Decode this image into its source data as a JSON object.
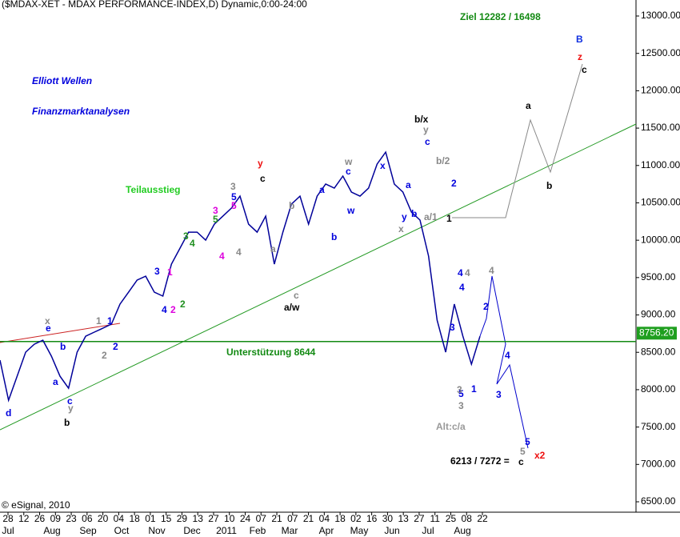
{
  "chart_data": {
    "type": "line",
    "title": "($MDAX-XET - MDAX PERFORMANCE-INDEX,D) Dynamic,0:00-24:00",
    "color": "#000099",
    "values": [
      8395,
      7859,
      8180,
      8502,
      8609,
      8662,
      8448,
      8180,
      8020,
      8502,
      8716,
      8770,
      8823,
      8877,
      9145,
      9305,
      9466,
      9519,
      9305,
      9252,
      9680,
      9894,
      10108,
      10108,
      10001,
      10215,
      10322,
      10430,
      10590,
      10215,
      10108,
      10322,
      9680,
      10108,
      10483,
      10590,
      10215,
      10590,
      10751,
      10697,
      10858,
      10644,
      10590,
      10697,
      11019,
      11179,
      10751,
      10644,
      10376,
      10269,
      9787,
      8930,
      8502,
      9145,
      8716,
      8341,
      8716
    ],
    "ylim": [
      6500,
      13000
    ],
    "yticks": [
      {
        "value": 6500,
        "label": "6500.00"
      },
      {
        "value": 7000,
        "label": "7000.00"
      },
      {
        "value": 7500,
        "label": "7500.00"
      },
      {
        "value": 8000,
        "label": "8000.00"
      },
      {
        "value": 8500,
        "label": "8500.00"
      },
      {
        "value": 9000,
        "label": "9000.00"
      },
      {
        "value": 9500,
        "label": "9500.00"
      },
      {
        "value": 10000,
        "label": "10000.00"
      },
      {
        "value": 10500,
        "label": "10500.00"
      },
      {
        "value": 11000,
        "label": "11000.00"
      },
      {
        "value": 11500,
        "label": "11500.00"
      },
      {
        "value": 12000,
        "label": "12000.00"
      },
      {
        "value": 12500,
        "label": "12500.00"
      },
      {
        "value": 13000,
        "label": "13000.00"
      }
    ],
    "day_labels": [
      "28",
      "12",
      "26",
      "09",
      "23",
      "06",
      "20",
      "04",
      "18",
      "01",
      "15",
      "29",
      "13",
      "27",
      "10",
      "24",
      "07",
      "21",
      "07",
      "21",
      "04",
      "18",
      "02",
      "16",
      "30",
      "13",
      "27",
      "11",
      "25",
      "08",
      "22"
    ],
    "month_labels": [
      "Jul",
      "Aug",
      "Sep",
      "Oct",
      "Nov",
      "Dec",
      "2011",
      "Feb",
      "Mar",
      "Apr",
      "May",
      "Jun",
      "Jul",
      "Aug"
    ],
    "support": {
      "value": 8644,
      "label": "Unterstützung 8644"
    },
    "last_price": {
      "value": 8756.2,
      "label": "8756.20"
    },
    "copyright": "© eSignal, 2010",
    "annotations": [
      {
        "text": "Elliott Wellen",
        "color": "#0000dd"
      },
      {
        "text": "Finanzmarktanalysen",
        "color": "#0000dd"
      },
      {
        "text": "Ziel 12282 / 16498",
        "color": "#138a13"
      },
      {
        "text": "B",
        "color": "#1030e0"
      },
      {
        "text": "z",
        "color": "#ee1111"
      },
      {
        "text": "c",
        "color": "#000000"
      },
      {
        "text": "a",
        "color": "#000000"
      },
      {
        "text": "b",
        "color": "#000000"
      },
      {
        "text": "b/x",
        "color": "#000000"
      },
      {
        "text": "y",
        "color": "#888888"
      },
      {
        "text": "c",
        "color": "#0000dd"
      },
      {
        "text": "y",
        "color": "#ee1111"
      },
      {
        "text": "c",
        "color": "#000000"
      },
      {
        "text": "Teilausstieg",
        "color": "#22cc22"
      },
      {
        "text": "a/w",
        "color": "#000000"
      },
      {
        "text": "c",
        "color": "#888888"
      },
      {
        "text": "Alt:c/a",
        "color": "#999999"
      },
      {
        "text": "6213 / 7272 =",
        "color": "#000000"
      },
      {
        "text": "c",
        "color": "#000000"
      },
      {
        "text": "x2",
        "color": "#ee1111"
      },
      {
        "text": "b",
        "color": "#000000"
      },
      {
        "text": "d",
        "color": "#0000dd"
      },
      {
        "text": "a/1",
        "color": "#888888"
      },
      {
        "text": "x",
        "color": "#888888"
      },
      {
        "text": "b/2",
        "color": "#888888"
      },
      {
        "text": "4",
        "color": "#888888"
      },
      {
        "text": "4",
        "color": "#888888"
      },
      {
        "text": "3",
        "color": "#888888"
      },
      {
        "text": "5",
        "color": "#0000dd"
      },
      {
        "text": "1",
        "color": "#0000dd"
      },
      {
        "text": "3",
        "color": "#0000dd"
      },
      {
        "text": "4",
        "color": "#0000dd"
      },
      {
        "text": "2",
        "color": "#0000dd"
      },
      {
        "text": "4",
        "color": "#0000dd"
      },
      {
        "text": "3",
        "color": "#0000dd"
      },
      {
        "text": "5",
        "color": "#0000dd"
      },
      {
        "text": "5",
        "color": "#888888"
      },
      {
        "text": "w",
        "color": "#888888"
      },
      {
        "text": "c",
        "color": "#0000dd"
      },
      {
        "text": "w",
        "color": "#0000dd"
      },
      {
        "text": "x",
        "color": "#0000dd"
      },
      {
        "text": "a",
        "color": "#0000dd"
      },
      {
        "text": "b",
        "color": "#0000dd"
      },
      {
        "text": "3",
        "color": "#888888"
      },
      {
        "text": "5",
        "color": "#0000dd"
      },
      {
        "text": "5",
        "color": "#dd00dd"
      },
      {
        "text": "4",
        "color": "#888888"
      },
      {
        "text": "a",
        "color": "#888888"
      },
      {
        "text": "b",
        "color": "#888888"
      },
      {
        "text": "x",
        "color": "#888888"
      },
      {
        "text": "e",
        "color": "#0000dd"
      },
      {
        "text": "3",
        "color": "#1f8f1f"
      },
      {
        "text": "4",
        "color": "#1f8f1f"
      },
      {
        "text": "3",
        "color": "#dd00dd"
      },
      {
        "text": "4",
        "color": "#dd00dd"
      },
      {
        "text": "3",
        "color": "#0000dd"
      },
      {
        "text": "4",
        "color": "#0000dd"
      },
      {
        "text": "2",
        "color": "#dd00dd"
      },
      {
        "text": "2",
        "color": "#1f8f1f"
      },
      {
        "text": "1",
        "color": "#dd00dd"
      },
      {
        "text": "2",
        "color": "#888888"
      },
      {
        "text": "2",
        "color": "#0000dd"
      },
      {
        "text": "1",
        "color": "#888888"
      },
      {
        "text": "1",
        "color": "#0000dd"
      },
      {
        "text": "c",
        "color": "#0000dd"
      },
      {
        "text": "y",
        "color": "#888888"
      },
      {
        "text": "a",
        "color": "#0000dd"
      },
      {
        "text": "b",
        "color": "#0000dd"
      },
      {
        "text": "y",
        "color": "#0000dd"
      },
      {
        "text": "b",
        "color": "#0000dd"
      },
      {
        "text": "a",
        "color": "#0000dd"
      },
      {
        "text": "1",
        "color": "#000000"
      },
      {
        "text": "2",
        "color": "#0000dd"
      },
      {
        "text": "4",
        "color": "#0000dd"
      },
      {
        "text": "3",
        "color": "#888888"
      },
      {
        "text": "5",
        "color": "#1f8f1f"
      }
    ]
  }
}
